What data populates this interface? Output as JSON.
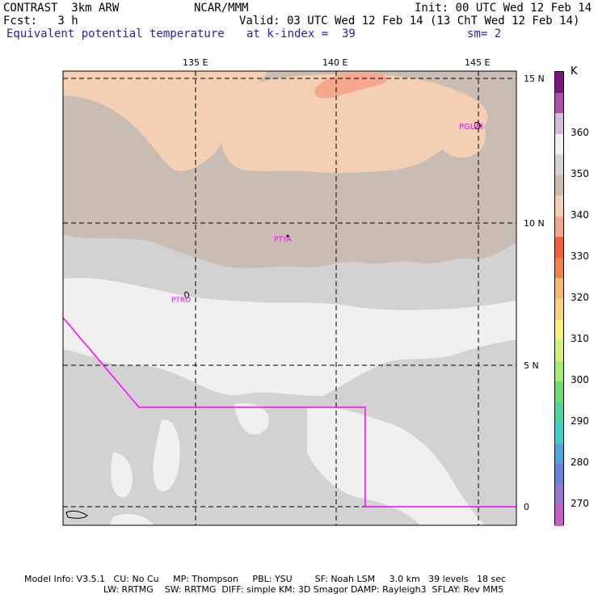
{
  "header": {
    "model": "CONTRAST  3km ARW",
    "org": "NCAR/MMM",
    "init": "Init: 00 UTC Wed 12 Feb 14",
    "fcst": "Fcst:   3 h",
    "valid": "Valid: 03 UTC Wed 12 Feb 14 (13 ChT Wed 12 Feb 14)",
    "field": "Equivalent potential temperature",
    "level": "at k-index =  39",
    "smooth": "sm= 2"
  },
  "axes": {
    "lon_labels": [
      "135 E",
      "140 E",
      "145 E"
    ],
    "lat_labels": [
      "15 N",
      "10 N",
      "5 N",
      "0"
    ]
  },
  "stations": [
    "PGUM",
    "PTYA",
    "PTRO"
  ],
  "colorbar": {
    "unit": "K",
    "tick_labels": [
      "360",
      "350",
      "340",
      "330",
      "320",
      "310",
      "300",
      "290",
      "280",
      "270"
    ],
    "colors": [
      "#7f137f",
      "#b04fa8",
      "#d4bcd8",
      "#f0f0f0",
      "#d2d2d2",
      "#c9bcb2",
      "#f5cfb4",
      "#f6a88e",
      "#f5603c",
      "#f1834a",
      "#f7b86a",
      "#f8d57c",
      "#f8f279",
      "#d6f07e",
      "#a6ec74",
      "#6bdf6f",
      "#4cd6a0",
      "#3ecfc8",
      "#4fa6de",
      "#6f7fde",
      "#9b79cc",
      "#c45fc8"
    ]
  },
  "footer": {
    "line1": "Model Info: V3.5.1   CU: No Cu     MP: Thompson     PBL: YSU        SF: Noah LSM     3.0 km   39 levels   18 sec",
    "line2": "LW: RRTMG    SW: RRTMG  DIFF: simple KM: 3D Smagor DAMP: Rayleigh3  SFLAY: Rev MM5"
  }
}
